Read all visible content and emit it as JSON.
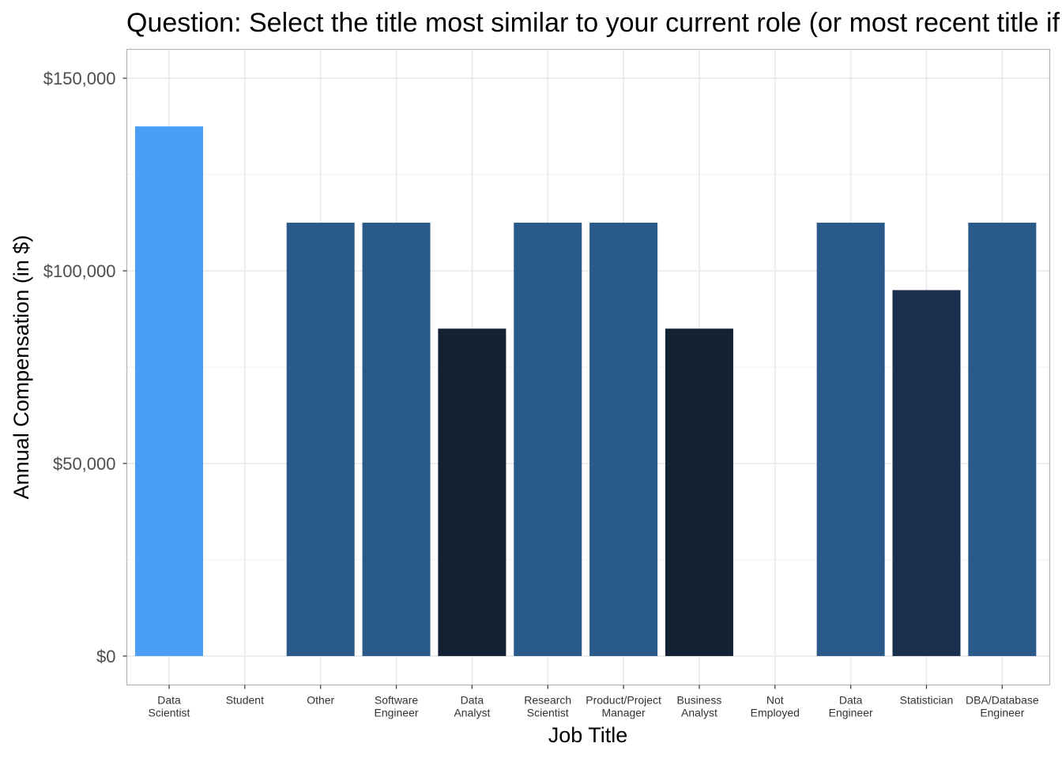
{
  "chart_data": {
    "type": "bar",
    "title": "Question: Select the title most similar to your current role (or most recent title if retired)",
    "xlabel": "Job Title",
    "ylabel": "Annual Compensation (in $)",
    "ylim": [
      -7500,
      157500
    ],
    "yticks": [
      0,
      50000,
      100000,
      150000
    ],
    "ytick_labels": [
      "$0",
      "$50,000",
      "$100,000",
      "$150,000"
    ],
    "grid": true,
    "categories": [
      [
        "Data",
        "Scientist"
      ],
      [
        "Student"
      ],
      [
        "Other"
      ],
      [
        "Software",
        "Engineer"
      ],
      [
        "Data",
        "Analyst"
      ],
      [
        "Research",
        "Scientist"
      ],
      [
        "Product/Project",
        "Manager"
      ],
      [
        "Business",
        "Analyst"
      ],
      [
        "Not",
        "Employed"
      ],
      [
        "Data",
        "Engineer"
      ],
      [
        "Statistician"
      ],
      [
        "DBA/Database",
        "Engineer"
      ]
    ],
    "values": [
      137500,
      0,
      112500,
      112500,
      85000,
      112500,
      112500,
      85000,
      0,
      112500,
      95000,
      112500
    ],
    "colors": [
      "#4a9ff5",
      "#4a9ff5",
      "#2a5a8a",
      "#2a5a8a",
      "#132233",
      "#2a5a8a",
      "#2a5a8a",
      "#132233",
      "#4a9ff5",
      "#2a5a8a",
      "#1a2f4d",
      "#2a5a8a"
    ]
  }
}
